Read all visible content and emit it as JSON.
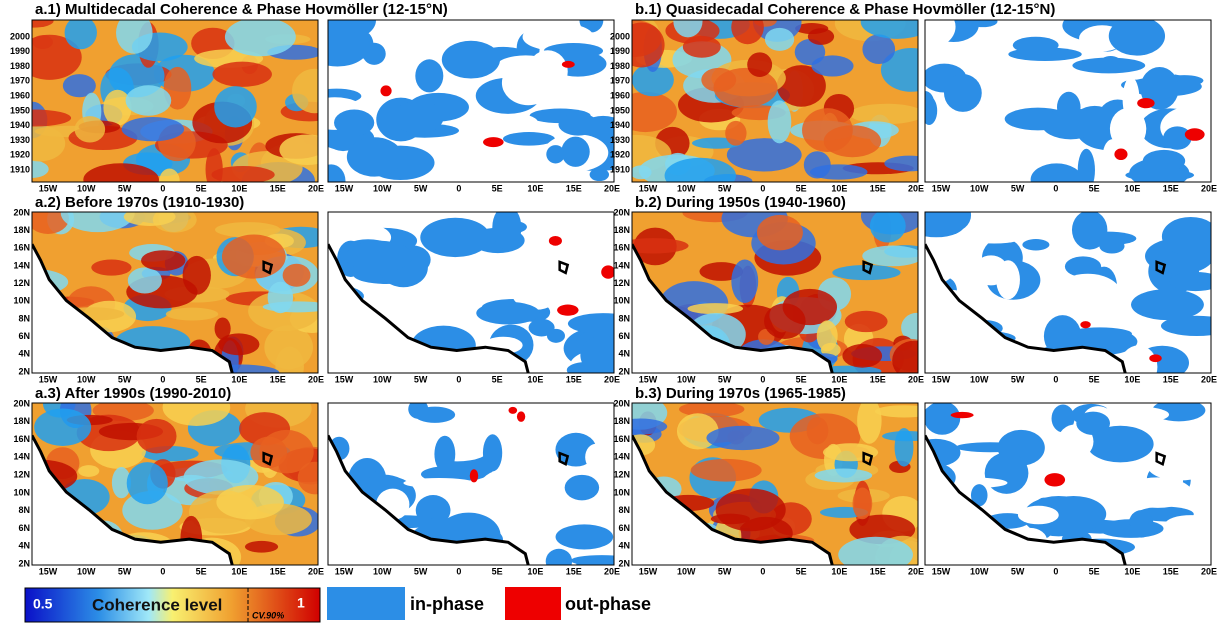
{
  "titles": [
    "a.1) Multidecadal Coherence & Phase Hovmöller (12-15°N)",
    "b.1) Quasidecadal Coherence & Phase Hovmöller (12-15°N)",
    "a.2) Before 1970s (1910-1930)",
    "b.2) During 1950s (1940-1960)",
    "a.3) After 1990s (1990-2010)",
    "b.3) During 1970s (1965-1985)"
  ],
  "x_tick_labels": [
    "15W",
    "10W",
    "5W",
    "0",
    "5E",
    "10E",
    "15E",
    "20E"
  ],
  "year_tick_labels": [
    "2000",
    "1990",
    "1980",
    "1970",
    "1960",
    "1950",
    "1940",
    "1930",
    "1920",
    "1910"
  ],
  "lat_tick_labels": [
    "20N",
    "18N",
    "16N",
    "14N",
    "12N",
    "10N",
    "8N",
    "6N",
    "4N",
    "2N"
  ],
  "colorbar": {
    "min_label": "0.5",
    "title": "Coherence level",
    "max_label": "1",
    "threshold_label": "CV.90%"
  },
  "legend": {
    "in_phase": "in-phase",
    "out_phase": "out-phase"
  }
}
